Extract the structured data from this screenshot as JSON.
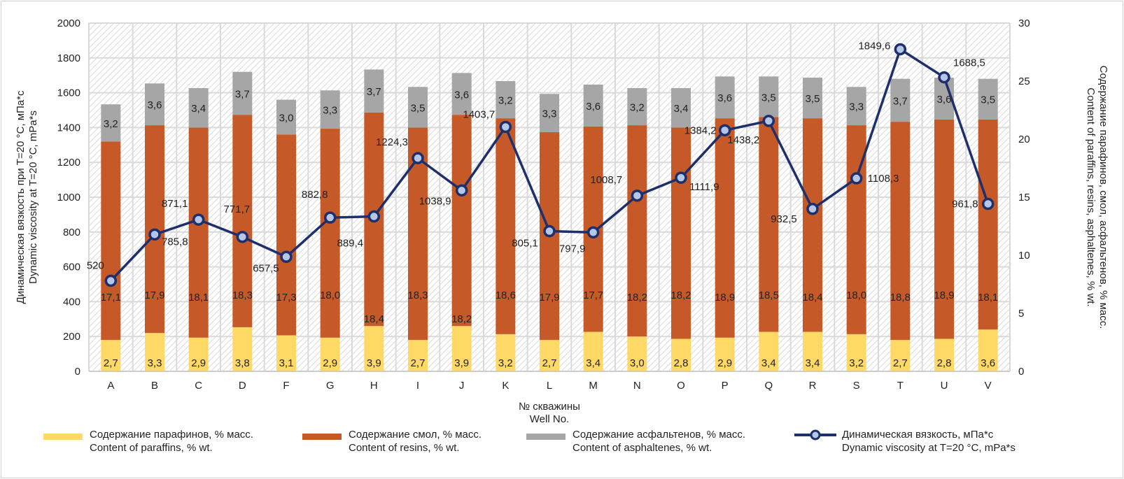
{
  "chart_data": {
    "type": "bar",
    "stacked": true,
    "xlabel": [
      "№ скважины",
      "Well No."
    ],
    "ylabel_left": [
      "Динамическая вязкость при T=20 °C, мПа*с",
      "Dynamic viscosity at T=20 °C, mPa*s"
    ],
    "ylabel_right": [
      "Содержание парафинов, смол, асфальтенов, % масс.",
      "Content of paraffins, resins, asphaltenes, % wt."
    ],
    "ylim_left": [
      0,
      2000
    ],
    "ylim_right": [
      0,
      30
    ],
    "yticks_left": [
      "0",
      "200",
      "400",
      "600",
      "800",
      "1000",
      "1200",
      "1400",
      "1600",
      "1800",
      "2000"
    ],
    "yticks_right": [
      "0",
      "5",
      "10",
      "15",
      "20",
      "25",
      "30"
    ],
    "grid": true,
    "legend_position": "bottom",
    "categories": [
      "A",
      "B",
      "C",
      "D",
      "F",
      "G",
      "H",
      "I",
      "J",
      "K",
      "L",
      "M",
      "N",
      "O",
      "P",
      "Q",
      "R",
      "S",
      "T",
      "U",
      "V"
    ],
    "series": [
      {
        "name": [
          "Содержание парафинов, % масс.",
          "Content of paraffins, % wt."
        ],
        "axis": "right",
        "kind": "bar",
        "color": "#FFD966",
        "values": [
          2.7,
          3.3,
          2.9,
          3.8,
          3.1,
          2.9,
          3.9,
          2.7,
          3.9,
          3.2,
          2.7,
          3.4,
          3.0,
          2.8,
          2.9,
          3.4,
          3.4,
          3.2,
          2.7,
          2.8,
          3.6
        ],
        "labels": [
          "2,7",
          "3,3",
          "2,9",
          "3,8",
          "3,1",
          "2,9",
          "3,9",
          "2,7",
          "3,9",
          "3,2",
          "2,7",
          "3,4",
          "3,0",
          "2,8",
          "2,9",
          "3,4",
          "3,4",
          "3,2",
          "2,7",
          "2,8",
          "3,6"
        ]
      },
      {
        "name": [
          "Содержание смол, % масс.",
          "Content of resins, % wt."
        ],
        "axis": "right",
        "kind": "bar",
        "color": "#C55A28",
        "values": [
          17.1,
          17.9,
          18.1,
          18.3,
          17.3,
          18.0,
          18.4,
          18.3,
          18.2,
          18.6,
          17.9,
          17.7,
          18.2,
          18.2,
          18.9,
          18.5,
          18.4,
          18.0,
          18.8,
          18.9,
          18.1
        ],
        "labels": [
          "17,1",
          "17,9",
          "18,1",
          "18,3",
          "17,3",
          "18,0",
          "18,4",
          "18,3",
          "18,2",
          "18,6",
          "17,9",
          "17,7",
          "18,2",
          "18,2",
          "18,9",
          "18,5",
          "18,4",
          "18,0",
          "18,8",
          "18,9",
          "18,1"
        ]
      },
      {
        "name": [
          "Содержание асфальтенов, % масс.",
          "Content of asphaltenes, % wt."
        ],
        "axis": "right",
        "kind": "bar",
        "color": "#A6A6A6",
        "values": [
          3.2,
          3.6,
          3.4,
          3.7,
          3.0,
          3.3,
          3.7,
          3.5,
          3.6,
          3.2,
          3.3,
          3.6,
          3.2,
          3.4,
          3.6,
          3.5,
          3.5,
          3.3,
          3.7,
          3.6,
          3.5
        ],
        "labels": [
          "3,2",
          "3,6",
          "3,4",
          "3,7",
          "3,0",
          "3,3",
          "3,7",
          "3,5",
          "3,6",
          "3,2",
          "3,3",
          "3,6",
          "3,2",
          "3,4",
          "3,6",
          "3,5",
          "3,5",
          "3,3",
          "3,7",
          "3,6",
          "3,5"
        ]
      },
      {
        "name": [
          "Динамическая вязкость, мПа*с",
          "Dynamic viscosity at T=20 °C, mPa*s"
        ],
        "axis": "left",
        "kind": "line",
        "color": "#1F2F6B",
        "values": [
          520,
          785.8,
          871.1,
          771.7,
          657.5,
          882.8,
          889.4,
          1224.3,
          1038.9,
          1403.7,
          805.1,
          797.9,
          1008.7,
          1111.9,
          1384.2,
          1438.2,
          932.5,
          1108.3,
          1849.6,
          1688.5,
          961.8
        ],
        "labels": [
          "520",
          "785,8",
          "871,1",
          "771,7",
          "657,5",
          "882,8",
          "889,4",
          "1224,3",
          "1038,9",
          "1403,7",
          "805,1",
          "797,9",
          "1008,7",
          "1111,9",
          "1384,2",
          "1438,2",
          "932,5",
          "1108,3",
          "1849,6",
          "1688,5",
          "961,8"
        ]
      }
    ]
  }
}
